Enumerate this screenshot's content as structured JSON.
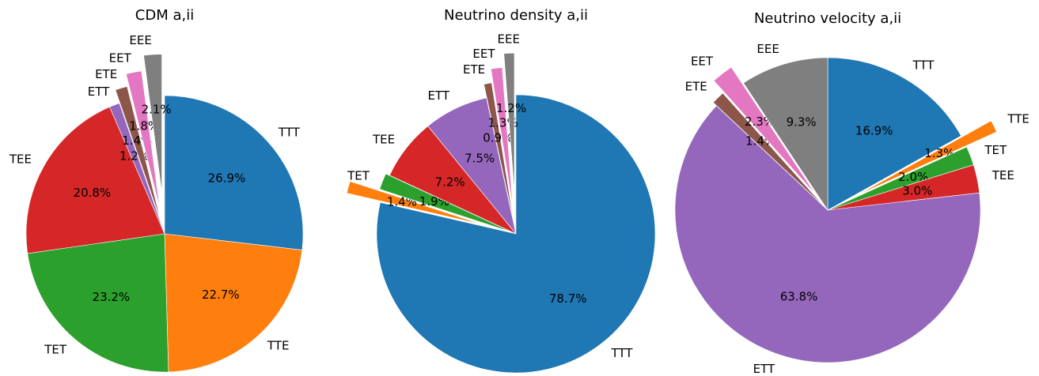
{
  "chart_data": [
    {
      "type": "pie",
      "title": "CDM a,ii",
      "categories": [
        "TTT",
        "TTE",
        "TET",
        "TEE",
        "ETT",
        "ETE",
        "EET",
        "EEE"
      ],
      "values": [
        26.9,
        22.7,
        23.2,
        20.8,
        1.2,
        1.4,
        1.8,
        2.1
      ],
      "value_labels": [
        "26.9%",
        "22.7%",
        "23.2%",
        "20.8%",
        "1.2%",
        "1.4%",
        "1.8%",
        "2.1%"
      ],
      "colors": [
        "#1f77b4",
        "#ff7f0e",
        "#2ca02c",
        "#d62728",
        "#9467bd",
        "#8c564b",
        "#e377c2",
        "#7f7f7f"
      ]
    },
    {
      "type": "pie",
      "title": "Neutrino density a,ii",
      "categories": [
        "TTT",
        null,
        "TET",
        "TEE",
        "ETT",
        "ETE",
        "EET",
        "EEE"
      ],
      "values": [
        78.7,
        1.4,
        1.9,
        7.2,
        7.5,
        0.9,
        1.3,
        1.2
      ],
      "value_labels": [
        "78.7%",
        "1.4%",
        "1.9%",
        "7.2%",
        "7.5%",
        "0.9%",
        "1.3%",
        "1.2%"
      ],
      "colors": [
        "#1f77b4",
        "#ff7f0e",
        "#2ca02c",
        "#d62728",
        "#9467bd",
        "#8c564b",
        "#e377c2",
        "#7f7f7f"
      ]
    },
    {
      "type": "pie",
      "title": "Neutrino velocity a,ii",
      "categories": [
        "TTT",
        "TTE",
        "TET",
        "TEE",
        "ETT",
        "ETE",
        "EET",
        "EEE"
      ],
      "values": [
        16.9,
        1.3,
        2.0,
        3.0,
        63.8,
        1.4,
        2.3,
        9.3
      ],
      "value_labels": [
        "16.9%",
        "1.3%",
        "2.0%",
        "3.0%",
        "63.8%",
        "1.4%",
        "2.3%",
        "9.3%"
      ],
      "colors": [
        "#1f77b4",
        "#ff7f0e",
        "#2ca02c",
        "#d62728",
        "#9467bd",
        "#8c564b",
        "#e377c2",
        "#7f7f7f"
      ]
    }
  ]
}
